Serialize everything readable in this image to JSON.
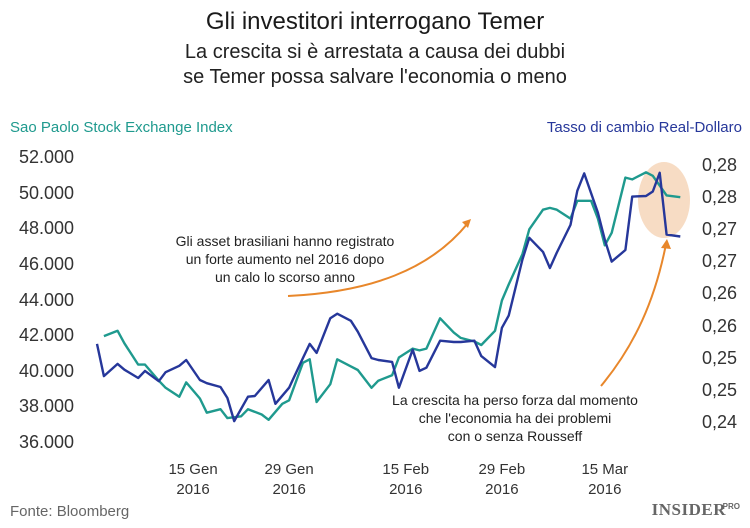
{
  "chart_data": {
    "type": "line",
    "title": "Gli investitori interrogano Temer",
    "subtitle": "La crescita si è arrestata a causa dei dubbi\nse Temer possa salvare l'economia o meno",
    "source": "Fonte: Bloomberg",
    "logo": "INSIDER",
    "logo_suffix": "PRO",
    "annotations": [
      "Gli asset brasiliani hanno registrato\nun forte aumento nel 2016 dopo\nun calo lo scorso anno",
      "La crescita ha perso forza dal momento\nche l'economia ha dei problemi\ncon o senza Rousseff"
    ],
    "xlim": [
      "2016-01-01",
      "2016-03-28"
    ],
    "xticks": [
      {
        "value": "2016-01-15",
        "label": "15 Gen\n2016"
      },
      {
        "value": "2016-01-29",
        "label": "29 Gen\n2016"
      },
      {
        "value": "2016-02-15",
        "label": "15 Feb\n2016"
      },
      {
        "value": "2016-02-29",
        "label": "29 Feb\n2016"
      },
      {
        "value": "2016-03-15",
        "label": "15 Mar\n2016"
      }
    ],
    "ylim": [
      36000,
      52000
    ],
    "yticks": [
      {
        "value": 36000,
        "label": "36.000"
      },
      {
        "value": 38000,
        "label": "38.000"
      },
      {
        "value": 40000,
        "label": "40.000"
      },
      {
        "value": 42000,
        "label": "42.000"
      },
      {
        "value": 44000,
        "label": "44.000"
      },
      {
        "value": 46000,
        "label": "46.000"
      },
      {
        "value": 48000,
        "label": "48.000"
      },
      {
        "value": 50000,
        "label": "50.000"
      },
      {
        "value": 52000,
        "label": "52.000"
      }
    ],
    "y2lim": [
      0.2369,
      0.2812
    ],
    "y2ticks": [
      {
        "value": 0.24,
        "label": "0,24"
      },
      {
        "value": 0.245,
        "label": "0,25"
      },
      {
        "value": 0.25,
        "label": "0,25"
      },
      {
        "value": 0.255,
        "label": "0,26"
      },
      {
        "value": 0.26,
        "label": "0,26"
      },
      {
        "value": 0.265,
        "label": "0,27"
      },
      {
        "value": 0.27,
        "label": "0,27"
      },
      {
        "value": 0.275,
        "label": "0,28"
      },
      {
        "value": 0.28,
        "label": "0,28"
      }
    ],
    "grid": false,
    "series": [
      {
        "name": "Sao Paolo Stock Exchange Index",
        "color": "#1f9a8e",
        "axis": "y",
        "x": [
          "2016-01-02",
          "2016-01-04",
          "2016-01-05",
          "2016-01-07",
          "2016-01-08",
          "2016-01-10",
          "2016-01-11",
          "2016-01-13",
          "2016-01-14",
          "2016-01-16",
          "2016-01-17",
          "2016-01-19",
          "2016-01-20",
          "2016-01-22",
          "2016-01-23",
          "2016-01-25",
          "2016-01-26",
          "2016-01-28",
          "2016-01-29",
          "2016-01-31",
          "2016-02-01",
          "2016-02-02",
          "2016-02-04",
          "2016-02-05",
          "2016-02-07",
          "2016-02-08",
          "2016-02-10",
          "2016-02-11",
          "2016-02-13",
          "2016-02-14",
          "2016-02-16",
          "2016-02-17",
          "2016-02-18",
          "2016-02-20",
          "2016-02-22",
          "2016-02-23",
          "2016-02-25",
          "2016-02-26",
          "2016-02-28",
          "2016-02-29",
          "2016-03-01",
          "2016-03-03",
          "2016-03-04",
          "2016-03-06",
          "2016-03-07",
          "2016-03-08",
          "2016-03-10",
          "2016-03-11",
          "2016-03-13",
          "2016-03-14",
          "2016-03-15",
          "2016-03-16",
          "2016-03-18",
          "2016-03-19",
          "2016-03-21",
          "2016-03-22",
          "2016-03-24",
          "2016-03-26"
        ],
        "values": [
          42000,
          42300,
          41600,
          40400,
          40400,
          39500,
          39100,
          38600,
          39400,
          38500,
          37700,
          37900,
          37400,
          37500,
          37900,
          37600,
          37300,
          38200,
          38400,
          40500,
          40700,
          38300,
          39300,
          40700,
          40300,
          40100,
          39100,
          39500,
          39800,
          40800,
          41300,
          41200,
          41300,
          43000,
          42200,
          41900,
          41700,
          41500,
          42300,
          44000,
          44900,
          46600,
          48000,
          49100,
          49200,
          49100,
          48600,
          49600,
          49600,
          48600,
          47100,
          47800,
          50900,
          50800,
          51200,
          51000,
          49900,
          49800
        ]
      },
      {
        "name": "Tasso di cambio Real-Dollaro",
        "color": "#26379a",
        "axis": "y2",
        "x": [
          "2016-01-01",
          "2016-01-02",
          "2016-01-04",
          "2016-01-05",
          "2016-01-07",
          "2016-01-08",
          "2016-01-10",
          "2016-01-11",
          "2016-01-13",
          "2016-01-14",
          "2016-01-16",
          "2016-01-17",
          "2016-01-19",
          "2016-01-20",
          "2016-01-21",
          "2016-01-23",
          "2016-01-24",
          "2016-01-26",
          "2016-01-27",
          "2016-01-29",
          "2016-01-31",
          "2016-02-01",
          "2016-02-02",
          "2016-02-04",
          "2016-02-05",
          "2016-02-07",
          "2016-02-08",
          "2016-02-10",
          "2016-02-11",
          "2016-02-13",
          "2016-02-14",
          "2016-02-16",
          "2016-02-17",
          "2016-02-18",
          "2016-02-20",
          "2016-02-22",
          "2016-02-23",
          "2016-02-25",
          "2016-02-26",
          "2016-02-28",
          "2016-02-29",
          "2016-03-01",
          "2016-03-03",
          "2016-03-04",
          "2016-03-06",
          "2016-03-07",
          "2016-03-08",
          "2016-03-10",
          "2016-03-11",
          "2016-03-12",
          "2016-03-14",
          "2016-03-15",
          "2016-03-16",
          "2016-03-18",
          "2016-03-19",
          "2016-03-21",
          "2016-03-22",
          "2016-03-23",
          "2016-03-24",
          "2016-03-26"
        ],
        "values": [
          0.2523,
          0.2473,
          0.2492,
          0.2483,
          0.247,
          0.2481,
          0.2465,
          0.2479,
          0.2489,
          0.2498,
          0.2467,
          0.2462,
          0.2456,
          0.2439,
          0.2403,
          0.2441,
          0.2442,
          0.2467,
          0.243,
          0.2455,
          0.2501,
          0.2523,
          0.2509,
          0.2563,
          0.257,
          0.2559,
          0.2542,
          0.2501,
          0.2498,
          0.2495,
          0.2455,
          0.2514,
          0.2481,
          0.2486,
          0.2528,
          0.2526,
          0.2526,
          0.2528,
          0.2504,
          0.2487,
          0.2548,
          0.2567,
          0.2654,
          0.2688,
          0.2666,
          0.2641,
          0.2665,
          0.2708,
          0.2761,
          0.2788,
          0.2727,
          0.2685,
          0.2651,
          0.2669,
          0.2752,
          0.2753,
          0.276,
          0.2789,
          0.2693,
          0.269
        ]
      }
    ]
  }
}
